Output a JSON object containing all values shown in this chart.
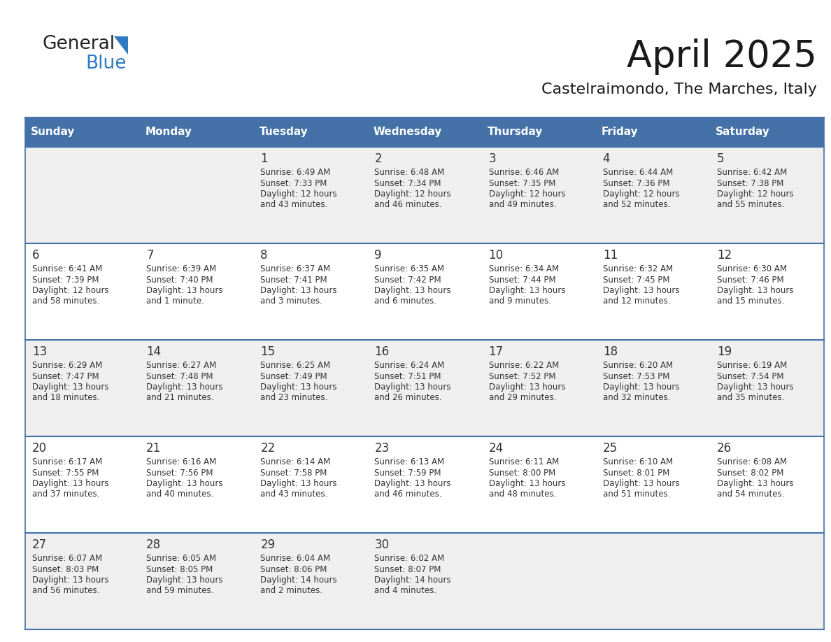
{
  "title": "April 2025",
  "subtitle": "Castelraimondo, The Marches, Italy",
  "header_bg_color": "#4472a8",
  "header_text_color": "#ffffff",
  "cell_bg_odd": "#efefef",
  "cell_bg_even": "#ffffff",
  "day_names": [
    "Sunday",
    "Monday",
    "Tuesday",
    "Wednesday",
    "Thursday",
    "Friday",
    "Saturday"
  ],
  "text_color": "#333333",
  "line_color": "#4472a8",
  "days": [
    {
      "day": 1,
      "col": 2,
      "row": 0,
      "sunrise": "6:49 AM",
      "sunset": "7:33 PM",
      "daylight_line1": "Daylight: 12 hours",
      "daylight_line2": "and 43 minutes."
    },
    {
      "day": 2,
      "col": 3,
      "row": 0,
      "sunrise": "6:48 AM",
      "sunset": "7:34 PM",
      "daylight_line1": "Daylight: 12 hours",
      "daylight_line2": "and 46 minutes."
    },
    {
      "day": 3,
      "col": 4,
      "row": 0,
      "sunrise": "6:46 AM",
      "sunset": "7:35 PM",
      "daylight_line1": "Daylight: 12 hours",
      "daylight_line2": "and 49 minutes."
    },
    {
      "day": 4,
      "col": 5,
      "row": 0,
      "sunrise": "6:44 AM",
      "sunset": "7:36 PM",
      "daylight_line1": "Daylight: 12 hours",
      "daylight_line2": "and 52 minutes."
    },
    {
      "day": 5,
      "col": 6,
      "row": 0,
      "sunrise": "6:42 AM",
      "sunset": "7:38 PM",
      "daylight_line1": "Daylight: 12 hours",
      "daylight_line2": "and 55 minutes."
    },
    {
      "day": 6,
      "col": 0,
      "row": 1,
      "sunrise": "6:41 AM",
      "sunset": "7:39 PM",
      "daylight_line1": "Daylight: 12 hours",
      "daylight_line2": "and 58 minutes."
    },
    {
      "day": 7,
      "col": 1,
      "row": 1,
      "sunrise": "6:39 AM",
      "sunset": "7:40 PM",
      "daylight_line1": "Daylight: 13 hours",
      "daylight_line2": "and 1 minute."
    },
    {
      "day": 8,
      "col": 2,
      "row": 1,
      "sunrise": "6:37 AM",
      "sunset": "7:41 PM",
      "daylight_line1": "Daylight: 13 hours",
      "daylight_line2": "and 3 minutes."
    },
    {
      "day": 9,
      "col": 3,
      "row": 1,
      "sunrise": "6:35 AM",
      "sunset": "7:42 PM",
      "daylight_line1": "Daylight: 13 hours",
      "daylight_line2": "and 6 minutes."
    },
    {
      "day": 10,
      "col": 4,
      "row": 1,
      "sunrise": "6:34 AM",
      "sunset": "7:44 PM",
      "daylight_line1": "Daylight: 13 hours",
      "daylight_line2": "and 9 minutes."
    },
    {
      "day": 11,
      "col": 5,
      "row": 1,
      "sunrise": "6:32 AM",
      "sunset": "7:45 PM",
      "daylight_line1": "Daylight: 13 hours",
      "daylight_line2": "and 12 minutes."
    },
    {
      "day": 12,
      "col": 6,
      "row": 1,
      "sunrise": "6:30 AM",
      "sunset": "7:46 PM",
      "daylight_line1": "Daylight: 13 hours",
      "daylight_line2": "and 15 minutes."
    },
    {
      "day": 13,
      "col": 0,
      "row": 2,
      "sunrise": "6:29 AM",
      "sunset": "7:47 PM",
      "daylight_line1": "Daylight: 13 hours",
      "daylight_line2": "and 18 minutes."
    },
    {
      "day": 14,
      "col": 1,
      "row": 2,
      "sunrise": "6:27 AM",
      "sunset": "7:48 PM",
      "daylight_line1": "Daylight: 13 hours",
      "daylight_line2": "and 21 minutes."
    },
    {
      "day": 15,
      "col": 2,
      "row": 2,
      "sunrise": "6:25 AM",
      "sunset": "7:49 PM",
      "daylight_line1": "Daylight: 13 hours",
      "daylight_line2": "and 23 minutes."
    },
    {
      "day": 16,
      "col": 3,
      "row": 2,
      "sunrise": "6:24 AM",
      "sunset": "7:51 PM",
      "daylight_line1": "Daylight: 13 hours",
      "daylight_line2": "and 26 minutes."
    },
    {
      "day": 17,
      "col": 4,
      "row": 2,
      "sunrise": "6:22 AM",
      "sunset": "7:52 PM",
      "daylight_line1": "Daylight: 13 hours",
      "daylight_line2": "and 29 minutes."
    },
    {
      "day": 18,
      "col": 5,
      "row": 2,
      "sunrise": "6:20 AM",
      "sunset": "7:53 PM",
      "daylight_line1": "Daylight: 13 hours",
      "daylight_line2": "and 32 minutes."
    },
    {
      "day": 19,
      "col": 6,
      "row": 2,
      "sunrise": "6:19 AM",
      "sunset": "7:54 PM",
      "daylight_line1": "Daylight: 13 hours",
      "daylight_line2": "and 35 minutes."
    },
    {
      "day": 20,
      "col": 0,
      "row": 3,
      "sunrise": "6:17 AM",
      "sunset": "7:55 PM",
      "daylight_line1": "Daylight: 13 hours",
      "daylight_line2": "and 37 minutes."
    },
    {
      "day": 21,
      "col": 1,
      "row": 3,
      "sunrise": "6:16 AM",
      "sunset": "7:56 PM",
      "daylight_line1": "Daylight: 13 hours",
      "daylight_line2": "and 40 minutes."
    },
    {
      "day": 22,
      "col": 2,
      "row": 3,
      "sunrise": "6:14 AM",
      "sunset": "7:58 PM",
      "daylight_line1": "Daylight: 13 hours",
      "daylight_line2": "and 43 minutes."
    },
    {
      "day": 23,
      "col": 3,
      "row": 3,
      "sunrise": "6:13 AM",
      "sunset": "7:59 PM",
      "daylight_line1": "Daylight: 13 hours",
      "daylight_line2": "and 46 minutes."
    },
    {
      "day": 24,
      "col": 4,
      "row": 3,
      "sunrise": "6:11 AM",
      "sunset": "8:00 PM",
      "daylight_line1": "Daylight: 13 hours",
      "daylight_line2": "and 48 minutes."
    },
    {
      "day": 25,
      "col": 5,
      "row": 3,
      "sunrise": "6:10 AM",
      "sunset": "8:01 PM",
      "daylight_line1": "Daylight: 13 hours",
      "daylight_line2": "and 51 minutes."
    },
    {
      "day": 26,
      "col": 6,
      "row": 3,
      "sunrise": "6:08 AM",
      "sunset": "8:02 PM",
      "daylight_line1": "Daylight: 13 hours",
      "daylight_line2": "and 54 minutes."
    },
    {
      "day": 27,
      "col": 0,
      "row": 4,
      "sunrise": "6:07 AM",
      "sunset": "8:03 PM",
      "daylight_line1": "Daylight: 13 hours",
      "daylight_line2": "and 56 minutes."
    },
    {
      "day": 28,
      "col": 1,
      "row": 4,
      "sunrise": "6:05 AM",
      "sunset": "8:05 PM",
      "daylight_line1": "Daylight: 13 hours",
      "daylight_line2": "and 59 minutes."
    },
    {
      "day": 29,
      "col": 2,
      "row": 4,
      "sunrise": "6:04 AM",
      "sunset": "8:06 PM",
      "daylight_line1": "Daylight: 14 hours",
      "daylight_line2": "and 2 minutes."
    },
    {
      "day": 30,
      "col": 3,
      "row": 4,
      "sunrise": "6:02 AM",
      "sunset": "8:07 PM",
      "daylight_line1": "Daylight: 14 hours",
      "daylight_line2": "and 4 minutes."
    }
  ],
  "logo_text1": "General",
  "logo_text2": "Blue",
  "logo_color1": "#222222",
  "logo_color2": "#2e7bbf",
  "logo_triangle_color": "#2e7bbf",
  "title_fontsize": 38,
  "subtitle_fontsize": 16,
  "header_fontsize": 11,
  "day_num_fontsize": 12,
  "cell_text_fontsize": 8.5
}
